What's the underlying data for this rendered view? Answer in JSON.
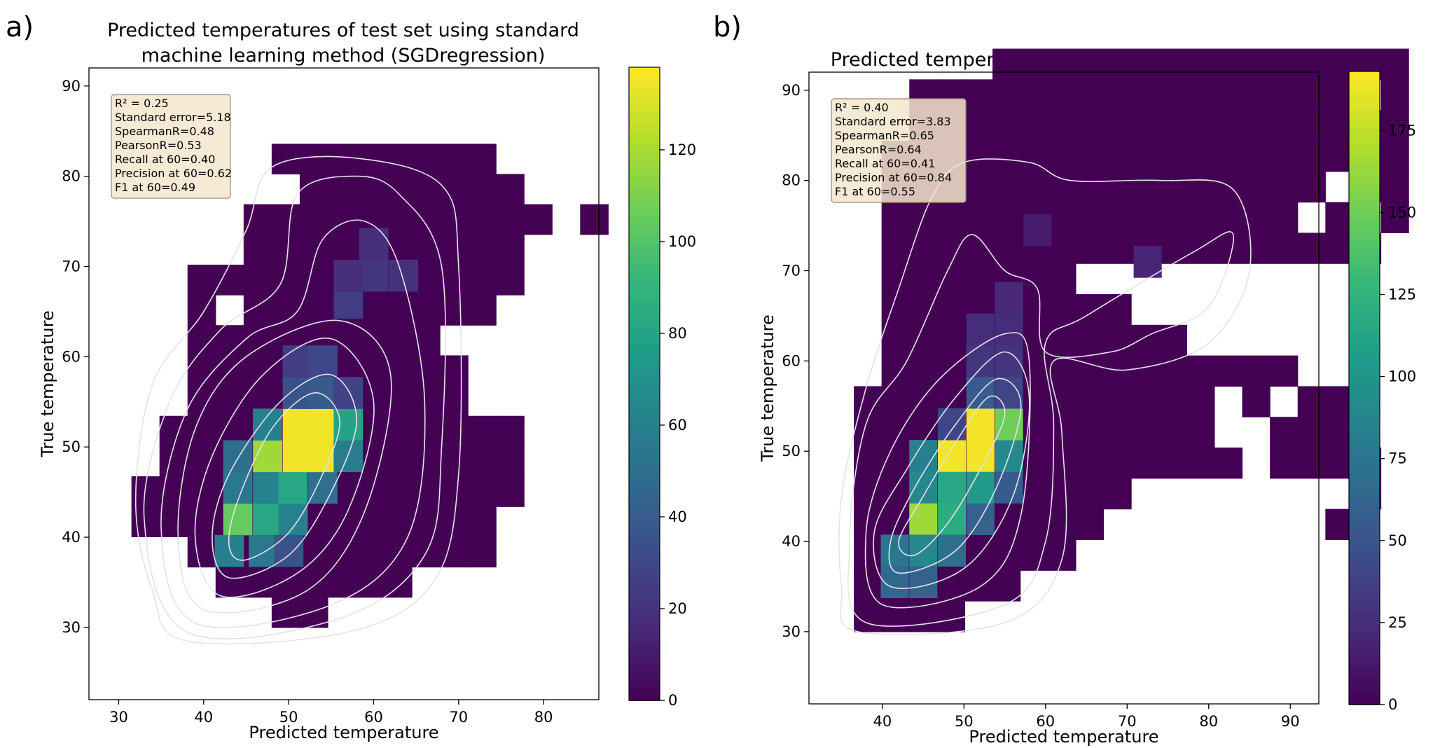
{
  "colors": {
    "colormap": [
      "#440154",
      "#482878",
      "#3e4989",
      "#31688e",
      "#26828e",
      "#1f9e89",
      "#35b779",
      "#6ece58",
      "#b5de2b",
      "#fde725"
    ],
    "contour": "#e8e0ee",
    "stats_box_fill": "#f5e6cc",
    "stats_box_stroke": "#9a8a70"
  },
  "chart_data": [
    {
      "type": "heatmap",
      "panel_label": "a)",
      "title_lines": [
        "Predicted temperatures of test set using standard",
        "machine learning method (SGDregression)"
      ],
      "xlabel": "Predicted temperature",
      "ylabel": "True temperature",
      "xlim": [
        26.5,
        86.5
      ],
      "ylim": [
        22,
        92
      ],
      "xticks": [
        30,
        40,
        50,
        60,
        70,
        80
      ],
      "yticks": [
        30,
        40,
        50,
        60,
        70,
        80,
        90
      ],
      "bins": {
        "x0": 31.5,
        "dx": 3.3,
        "y0": 30,
        "dy": 3.35
      },
      "grid": [
        "-----xx",
        "---xxxxxxx",
        "--xxxxxxxxxxx",
        "xxxxxxxxxxxxx",
        "xxxxxxxxxxxxxx",
        "-xxxxxxxxxxxxx",
        "-xxxxxxxxxxxxx",
        "--xxxxxxxxxx",
        "--xxxxxxxxxx",
        "--xxxxxxxxx",
        "--x-xxxxxxxxx",
        "--xxxxxxxxxxxx",
        "----xxxxxxxxxx",
        "----xxxxxxxxxxx-x",
        "------xxxxxxxx",
        "-----xxxxxxxx"
      ],
      "cells": [
        {
          "x": 44,
          "y": 42,
          "v": 105
        },
        {
          "x": 47.5,
          "y": 42,
          "v": 82
        },
        {
          "x": 50.5,
          "y": 42,
          "v": 62
        },
        {
          "x": 43,
          "y": 38.5,
          "v": 60
        },
        {
          "x": 47,
          "y": 38.5,
          "v": 55
        },
        {
          "x": 50,
          "y": 38.5,
          "v": 35
        },
        {
          "x": 44,
          "y": 45.5,
          "v": 55
        },
        {
          "x": 47.5,
          "y": 45.5,
          "v": 62
        },
        {
          "x": 50.5,
          "y": 45.5,
          "v": 82
        },
        {
          "x": 54,
          "y": 45.5,
          "v": 50
        },
        {
          "x": 44,
          "y": 49,
          "v": 50
        },
        {
          "x": 47.5,
          "y": 49,
          "v": 118
        },
        {
          "x": 51,
          "y": 49,
          "v": 135
        },
        {
          "x": 54,
          "y": 49,
          "v": 135
        },
        {
          "x": 57,
          "y": 49,
          "v": 58
        },
        {
          "x": 47.5,
          "y": 52.5,
          "v": 60
        },
        {
          "x": 51,
          "y": 52.5,
          "v": 135
        },
        {
          "x": 54,
          "y": 52.5,
          "v": 135
        },
        {
          "x": 57,
          "y": 52.5,
          "v": 80
        },
        {
          "x": 51,
          "y": 56,
          "v": 35
        },
        {
          "x": 54,
          "y": 56,
          "v": 40
        },
        {
          "x": 57,
          "y": 56,
          "v": 28
        },
        {
          "x": 51,
          "y": 59.5,
          "v": 25
        },
        {
          "x": 54,
          "y": 59.5,
          "v": 30
        },
        {
          "x": 57,
          "y": 66,
          "v": 25
        },
        {
          "x": 60,
          "y": 69,
          "v": 22
        },
        {
          "x": 63.5,
          "y": 69,
          "v": 20
        },
        {
          "x": 57,
          "y": 69,
          "v": 18
        },
        {
          "x": 60,
          "y": 72.5,
          "v": 18
        }
      ],
      "colorbar": {
        "max": 138,
        "ticks": [
          0,
          20,
          40,
          60,
          80,
          100,
          120
        ]
      },
      "stats": [
        "R² = 0.25",
        "Standard error=5.18",
        "SpearmanR=0.48",
        "PearsonR=0.53",
        "Recall at 60=0.40",
        "Precision at 60=0.62",
        "F1 at 60=0.49"
      ],
      "contours": [
        [
          [
            45,
            37.5
          ],
          [
            50,
            40.5
          ],
          [
            54,
            47
          ],
          [
            56,
            53
          ],
          [
            53,
            56
          ],
          [
            48,
            52
          ],
          [
            44,
            44
          ],
          [
            43,
            39
          ]
        ],
        [
          [
            43,
            35.5
          ],
          [
            50,
            38
          ],
          [
            55,
            45
          ],
          [
            58,
            53
          ],
          [
            55,
            58
          ],
          [
            49,
            55
          ],
          [
            43,
            47
          ],
          [
            41,
            40
          ]
        ],
        [
          [
            42,
            33.5
          ],
          [
            51,
            36
          ],
          [
            57,
            43
          ],
          [
            60,
            55
          ],
          [
            55,
            62
          ],
          [
            47,
            58
          ],
          [
            41,
            49
          ],
          [
            39,
            40
          ]
        ],
        [
          [
            40,
            32
          ],
          [
            52,
            34
          ],
          [
            59,
            43
          ],
          [
            62,
            58
          ],
          [
            56,
            64
          ],
          [
            45,
            60
          ],
          [
            39,
            52
          ],
          [
            37,
            40
          ]
        ],
        [
          [
            39,
            30.5
          ],
          [
            55,
            32.5
          ],
          [
            64,
            40
          ],
          [
            66,
            55
          ],
          [
            63,
            70
          ],
          [
            59,
            75
          ],
          [
            54,
            73
          ],
          [
            51,
            65
          ],
          [
            45,
            62
          ],
          [
            38,
            54
          ],
          [
            35,
            41
          ]
        ],
        [
          [
            38,
            29.5
          ],
          [
            56,
            31
          ],
          [
            66,
            38
          ],
          [
            68,
            50
          ],
          [
            68,
            70
          ],
          [
            63,
            78
          ],
          [
            58,
            80
          ],
          [
            51,
            78
          ],
          [
            49,
            68
          ],
          [
            42,
            63
          ],
          [
            36,
            55
          ],
          [
            33,
            42
          ]
        ],
        [
          [
            38,
            28.5
          ],
          [
            57,
            29.5
          ],
          [
            67,
            35
          ],
          [
            70,
            47
          ],
          [
            70,
            70
          ],
          [
            68,
            79
          ],
          [
            58,
            82
          ],
          [
            48,
            81
          ],
          [
            45,
            74
          ],
          [
            40,
            65
          ],
          [
            34,
            57
          ],
          [
            32,
            44
          ],
          [
            34,
            34
          ]
        ]
      ]
    },
    {
      "type": "heatmap",
      "panel_label": "b)",
      "title_lines": [
        "Predicted temperatures original data distribution"
      ],
      "xlabel": "Predicted temperature",
      "ylabel": "True temperature",
      "xlim": [
        31,
        93.5
      ],
      "ylim": [
        22,
        92
      ],
      "xticks": [
        40,
        50,
        60,
        70,
        80,
        90
      ],
      "yticks": [
        30,
        40,
        50,
        60,
        70,
        80,
        90
      ],
      "bins": {
        "x0": 36.5,
        "dx": 3.4,
        "y0": 30,
        "dy": 3.4
      },
      "grid": [
        "xxxx",
        "xxxxxx",
        "xxxxxxxx",
        "xxxxxxxxx--------x",
        "xxxxxxxxxx--------x",
        "xxxxxxxxxxxxxx-xxxx",
        "xxxxxxxxxxxxx--xxx",
        "xxxxxxxxxxxxx-x-xx",
        "-xxxxxxxxxxxxxxx",
        "-xxxxxxxxxxx",
        "-xxxxxxxxx",
        "-xxxxxxx",
        "-xxxxxxxxxxxxxxxxxx",
        "-xxxxxxxxxxxxxxx-x-x",
        "-xxxxxxxxxxxxxxxx-xx",
        "-xxxxxxxxxxxxxxxxxxx",
        "--xxxxxxxxxxxxxxxxxx",
        "--xxxxxxxxxxxxxxxx-x",
        "-----xxxxxxxxxxxxxxx"
      ],
      "cells": [
        {
          "x": 45,
          "y": 42.5,
          "v": 165
        },
        {
          "x": 48.5,
          "y": 42.5,
          "v": 120
        },
        {
          "x": 52,
          "y": 42.5,
          "v": 60
        },
        {
          "x": 41.5,
          "y": 39,
          "v": 75
        },
        {
          "x": 45,
          "y": 39,
          "v": 90
        },
        {
          "x": 48.5,
          "y": 39,
          "v": 70
        },
        {
          "x": 41.5,
          "y": 35.5,
          "v": 65
        },
        {
          "x": 45,
          "y": 35.5,
          "v": 60
        },
        {
          "x": 45,
          "y": 46,
          "v": 90
        },
        {
          "x": 48.5,
          "y": 46,
          "v": 115
        },
        {
          "x": 52,
          "y": 46,
          "v": 105
        },
        {
          "x": 55.5,
          "y": 46,
          "v": 55
        },
        {
          "x": 45,
          "y": 49.5,
          "v": 85
        },
        {
          "x": 48.5,
          "y": 49.5,
          "v": 190
        },
        {
          "x": 52,
          "y": 49.5,
          "v": 190
        },
        {
          "x": 55.5,
          "y": 49.5,
          "v": 90
        },
        {
          "x": 52,
          "y": 53,
          "v": 190
        },
        {
          "x": 55.5,
          "y": 53,
          "v": 150
        },
        {
          "x": 48.5,
          "y": 53,
          "v": 40
        },
        {
          "x": 52,
          "y": 56.5,
          "v": 55
        },
        {
          "x": 55.5,
          "y": 56.5,
          "v": 40
        },
        {
          "x": 52,
          "y": 60,
          "v": 30
        },
        {
          "x": 55.5,
          "y": 60,
          "v": 30
        },
        {
          "x": 52,
          "y": 63.5,
          "v": 25
        },
        {
          "x": 55.5,
          "y": 63.5,
          "v": 25
        },
        {
          "x": 55.5,
          "y": 67,
          "v": 22
        },
        {
          "x": 72.5,
          "y": 71,
          "v": 20
        },
        {
          "x": 59,
          "y": 74.5,
          "v": 15
        }
      ],
      "colorbar": {
        "max": 193,
        "ticks": [
          0,
          25,
          50,
          75,
          100,
          125,
          150,
          175
        ]
      },
      "stats": [
        "R² = 0.40",
        "Standard error=3.83",
        "SpearmanR=0.65",
        "PearsonR=0.64",
        "Recall at 60=0.41",
        "Precision at 60=0.84",
        "F1 at 60=0.55"
      ],
      "contours": [
        [
          [
            44,
            38.5
          ],
          [
            48,
            42
          ],
          [
            52,
            48
          ],
          [
            55,
            54
          ],
          [
            53,
            56
          ],
          [
            49,
            51
          ],
          [
            45,
            45
          ],
          [
            42,
            40
          ]
        ],
        [
          [
            42,
            36.5
          ],
          [
            49,
            39
          ],
          [
            54,
            46
          ],
          [
            57,
            55
          ],
          [
            54,
            58
          ],
          [
            49,
            53
          ],
          [
            44,
            46
          ],
          [
            41,
            40
          ]
        ],
        [
          [
            41,
            35
          ],
          [
            50,
            37
          ],
          [
            56,
            45
          ],
          [
            58,
            56
          ],
          [
            55,
            61
          ],
          [
            49,
            56
          ],
          [
            43,
            48
          ],
          [
            39,
            41
          ]
        ],
        [
          [
            40,
            33
          ],
          [
            52,
            35
          ],
          [
            57,
            43
          ],
          [
            58,
            60
          ],
          [
            55,
            63
          ],
          [
            47,
            58
          ],
          [
            41,
            50
          ],
          [
            38,
            41
          ]
        ],
        [
          [
            38,
            31
          ],
          [
            55,
            33
          ],
          [
            60,
            40
          ],
          [
            61,
            53
          ],
          [
            60,
            62
          ],
          [
            65,
            65
          ],
          [
            78,
            72
          ],
          [
            83,
            74
          ],
          [
            80,
            66
          ],
          [
            73,
            63
          ],
          [
            68,
            61
          ],
          [
            60,
            61
          ],
          [
            59,
            68
          ],
          [
            55,
            70
          ],
          [
            51,
            74
          ],
          [
            48,
            70
          ],
          [
            43,
            60
          ],
          [
            38,
            53
          ],
          [
            36,
            40
          ]
        ],
        [
          [
            37,
            30
          ],
          [
            55,
            31
          ],
          [
            62,
            38
          ],
          [
            62,
            52
          ],
          [
            61,
            60
          ],
          [
            70,
            59
          ],
          [
            80,
            62
          ],
          [
            85,
            70
          ],
          [
            83,
            79
          ],
          [
            74,
            80
          ],
          [
            63,
            80
          ],
          [
            58,
            82
          ],
          [
            50,
            82
          ],
          [
            46,
            78
          ],
          [
            42,
            68
          ],
          [
            38,
            57
          ],
          [
            35,
            45
          ],
          [
            35,
            35
          ]
        ]
      ]
    }
  ]
}
